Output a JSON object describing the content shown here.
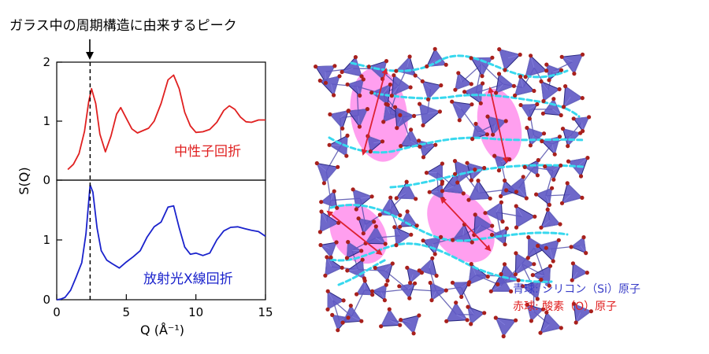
{
  "annotation": {
    "title": "ガラス中の周期構造に由来するピーク",
    "arrow_glyph": "↓"
  },
  "chart_data": [
    {
      "type": "line",
      "panel": "top",
      "label": "中性子回折",
      "xlim": [
        0,
        15
      ],
      "ylim": [
        0,
        2
      ],
      "yticks": [
        0,
        1,
        2
      ],
      "ytick_labels": [
        "0",
        "1",
        "2"
      ],
      "color": "#e02020",
      "series": [
        {
          "x": [
            0.8,
            1.2,
            1.6,
            2.0,
            2.3,
            2.5,
            2.8,
            3.1,
            3.5,
            3.9,
            4.3,
            4.6,
            5.0,
            5.4,
            5.8,
            6.2,
            6.6,
            7.0,
            7.5,
            8.0,
            8.4,
            8.8,
            9.2,
            9.6,
            10.0,
            10.5,
            11.0,
            11.5,
            12.0,
            12.4,
            12.8,
            13.2,
            13.6,
            14.0,
            14.5,
            15.0
          ],
          "y": [
            0.18,
            0.27,
            0.45,
            0.83,
            1.33,
            1.55,
            1.3,
            0.78,
            0.48,
            0.75,
            1.12,
            1.23,
            1.05,
            0.87,
            0.8,
            0.84,
            0.88,
            1.0,
            1.3,
            1.7,
            1.78,
            1.55,
            1.15,
            0.92,
            0.81,
            0.82,
            0.86,
            0.98,
            1.18,
            1.26,
            1.2,
            1.07,
            0.99,
            0.98,
            1.02,
            1.02
          ]
        }
      ]
    },
    {
      "type": "line",
      "panel": "bottom",
      "label": "放射光X線回折",
      "xlim": [
        0,
        15
      ],
      "ylim": [
        0,
        2
      ],
      "yticks": [
        0,
        1
      ],
      "ytick_labels": [
        "0",
        "1"
      ],
      "xticks": [
        0,
        5,
        10,
        15
      ],
      "xtick_labels": [
        "0",
        "5",
        "10",
        "15"
      ],
      "xlabel": "Q (Å⁻¹)",
      "ylabel": "S(Q)",
      "color": "#1a22cc",
      "series": [
        {
          "x": [
            0,
            0.3,
            0.6,
            1.0,
            1.4,
            1.8,
            2.1,
            2.4,
            2.6,
            2.9,
            3.2,
            3.6,
            4.0,
            4.5,
            5.0,
            5.5,
            6.0,
            6.5,
            7.0,
            7.5,
            8.0,
            8.4,
            8.8,
            9.2,
            9.6,
            10.0,
            10.5,
            11.0,
            11.5,
            12.0,
            12.5,
            13.0,
            13.5,
            14.0,
            14.5,
            15.0
          ],
          "y": [
            0.0,
            0.01,
            0.04,
            0.16,
            0.38,
            0.62,
            1.1,
            1.92,
            1.8,
            1.2,
            0.82,
            0.66,
            0.6,
            0.53,
            0.63,
            0.72,
            0.82,
            1.05,
            1.22,
            1.3,
            1.55,
            1.57,
            1.2,
            0.88,
            0.76,
            0.78,
            0.74,
            0.78,
            1.0,
            1.15,
            1.21,
            1.22,
            1.19,
            1.16,
            1.14,
            1.06
          ]
        }
      ]
    }
  ],
  "marker_q": 2.4,
  "legend": {
    "blue": "青球: シリコン（Si）原子",
    "red": "赤球: 酸素（O）原子"
  },
  "colors": {
    "tetra_fill": "#5e58c4",
    "tetra_stroke": "#2a2880",
    "atom": "#a8201c",
    "ring": "#ff6ce6",
    "chain": "#37d8ee",
    "arrow": "#dd2233",
    "legend_blue": "#3a3ec8",
    "legend_red": "#e02020"
  }
}
